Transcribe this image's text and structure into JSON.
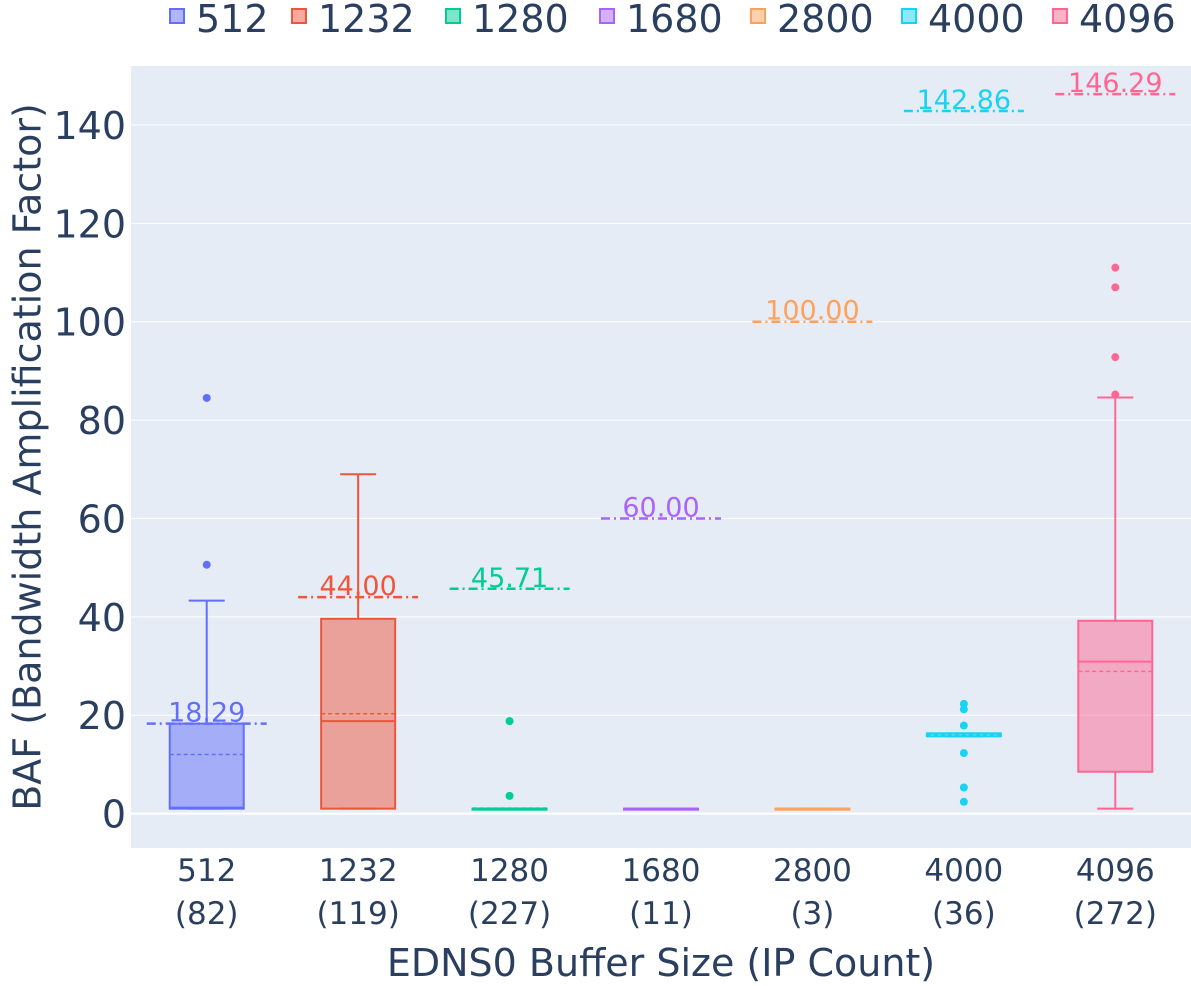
{
  "chart_data": {
    "type": "box",
    "title": "",
    "xlabel": "EDNS0 Buffer Size (IP Count)",
    "ylabel": "BAF (Bandwidth Amplification Factor)",
    "ylim": [
      -7,
      152
    ],
    "yticks": [
      0,
      20,
      40,
      60,
      80,
      100,
      120,
      140
    ],
    "grid": true,
    "legend_position": "top",
    "background": "#e5ecf6",
    "series": [
      {
        "name": "512",
        "category": "512",
        "sublabel": "(82)",
        "color": "#636efa",
        "q1": 1,
        "median": 1.2,
        "q3": 18.29,
        "lowerfence": 1,
        "upperfence": 43.3,
        "mean": 12,
        "max_label": "18.29",
        "max_value": 18.29,
        "outliers": [
          50.6,
          84.5
        ]
      },
      {
        "name": "1232",
        "category": "1232",
        "sublabel": "(119)",
        "color": "#ef553b",
        "q1": 1,
        "median": 18.8,
        "q3": 39.6,
        "lowerfence": 1,
        "upperfence": 69,
        "mean": 20.3,
        "max_label": "44.00",
        "max_value": 44.0,
        "outliers": []
      },
      {
        "name": "1280",
        "category": "1280",
        "sublabel": "(227)",
        "color": "#00cc96",
        "q1": 1,
        "median": 1,
        "q3": 1,
        "lowerfence": 1,
        "upperfence": 1,
        "mean": 1.1,
        "max_label": "45.71",
        "max_value": 45.71,
        "outliers": [
          3.6,
          18.8
        ]
      },
      {
        "name": "1680",
        "category": "1680",
        "sublabel": "(11)",
        "color": "#ab63fa",
        "q1": 1,
        "median": 1,
        "q3": 1,
        "lowerfence": 1,
        "upperfence": 1,
        "mean": 1,
        "max_label": "60.00",
        "max_value": 60.0,
        "outliers": []
      },
      {
        "name": "2800",
        "category": "2800",
        "sublabel": "(3)",
        "color": "#ffa15a",
        "q1": 1,
        "median": 1,
        "q3": 1,
        "lowerfence": 1,
        "upperfence": 1,
        "mean": 1,
        "max_label": "100.00",
        "max_value": 100.0,
        "outliers": []
      },
      {
        "name": "4000",
        "category": "4000",
        "sublabel": "(36)",
        "color": "#19d3f3",
        "q1": 15.7,
        "median": 16.3,
        "q3": 16.3,
        "lowerfence": 15.7,
        "upperfence": 16.3,
        "mean": 16.0,
        "max_label": "142.86",
        "max_value": 142.86,
        "outliers": [
          2.4,
          5.3,
          12.3,
          17.9,
          21.2,
          22.3
        ]
      },
      {
        "name": "4096",
        "category": "4096",
        "sublabel": "(272)",
        "color": "#ff6692",
        "q1": 8.5,
        "median": 30.9,
        "q3": 39.2,
        "lowerfence": 1,
        "upperfence": 84.6,
        "mean": 28.9,
        "max_label": "146.29",
        "max_value": 146.29,
        "outliers": [
          85.2,
          92.8,
          107,
          111
        ]
      }
    ]
  }
}
